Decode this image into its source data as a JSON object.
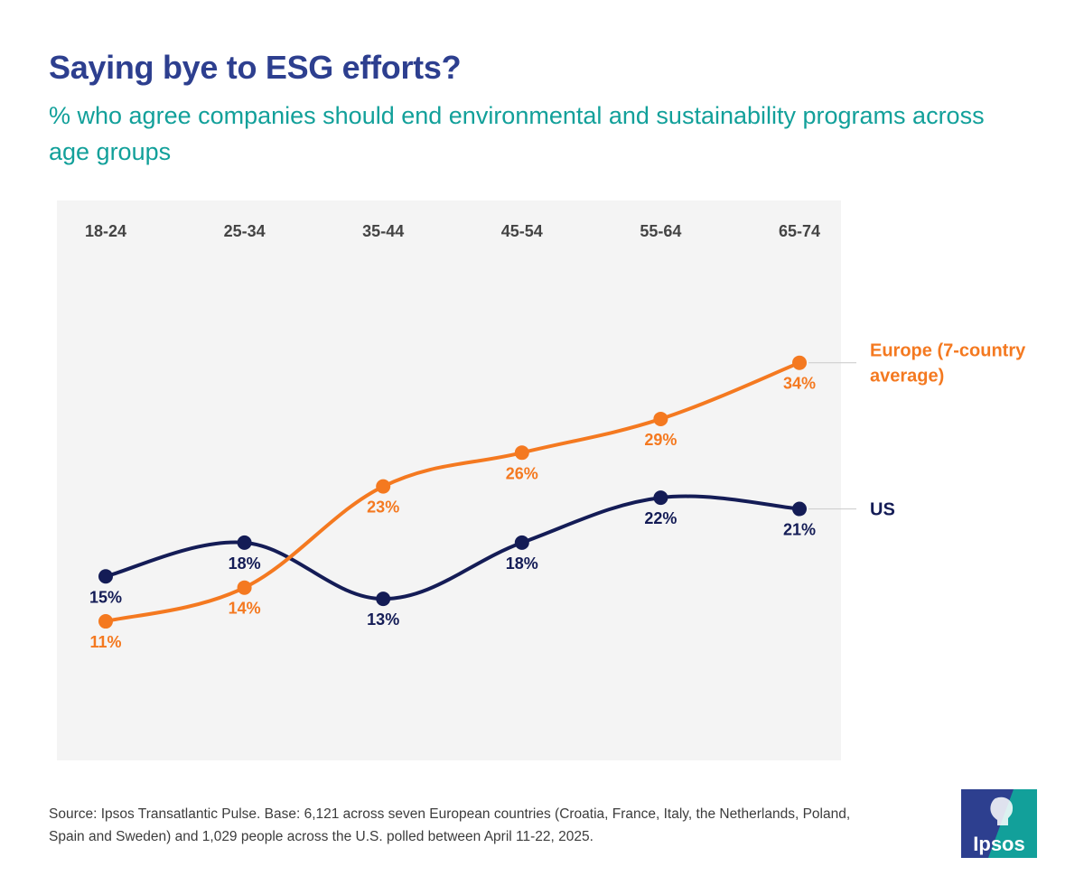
{
  "header": {
    "title": "Saying bye to ESG efforts?",
    "subtitle": "% who agree companies should end environmental and sustainability programs across age groups"
  },
  "chart_data": {
    "type": "line",
    "title": "Saying bye to ESG efforts?",
    "subtitle": "% who agree companies should end environmental and sustainability programs across age groups",
    "categories": [
      "18-24",
      "25-34",
      "35-44",
      "45-54",
      "55-64",
      "65-74"
    ],
    "ylim": [
      0,
      40
    ],
    "unit": "%",
    "series": [
      {
        "name": "Europe (7-country average)",
        "name_lines": [
          "Europe (7-country",
          "average)"
        ],
        "color": "#f47920",
        "values": [
          11,
          14,
          23,
          26,
          29,
          34
        ],
        "label_position": "below"
      },
      {
        "name": "US",
        "name_lines": [
          "US"
        ],
        "color": "#141c56",
        "values": [
          15,
          18,
          13,
          18,
          22,
          21
        ],
        "label_position": [
          "below",
          "below",
          "below",
          "below",
          "below",
          "below"
        ]
      }
    ],
    "legend": "right"
  },
  "footer": {
    "source": "Source: Ipsos Transatlantic Pulse. Base: 6,121 across seven European countries (Croatia, France, Italy, the Netherlands, Poland, Spain and Sweden) and 1,029 people across the U.S. polled between April 11-22, 2025."
  },
  "brand": {
    "logo_text": "Ipsos",
    "colors": {
      "blue": "#2d3f8f",
      "teal": "#12a09a",
      "orange": "#f47920",
      "navy": "#141c56"
    }
  }
}
